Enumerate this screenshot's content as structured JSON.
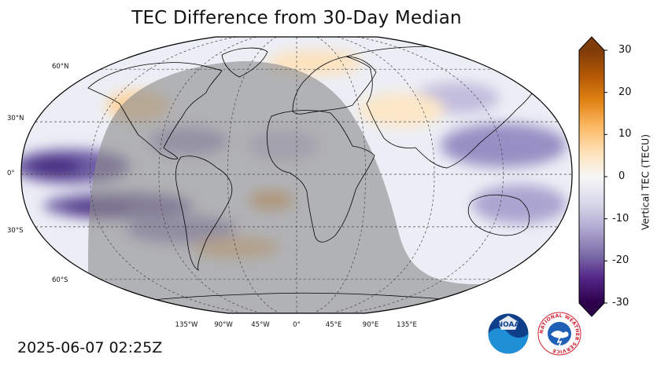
{
  "title": "TEC Difference from 30-Day Median",
  "timestamp": "2025-06-07 02:25Z",
  "map": {
    "projection": "Robinson",
    "lat_labels": [
      "60°N",
      "30°N",
      "0°",
      "30°S",
      "60°S"
    ],
    "lon_labels": [
      "135°W",
      "90°W",
      "45°W",
      "0°",
      "45°E",
      "90°E",
      "135°E"
    ],
    "night_shade_color": "#8c8c8c",
    "land_outline_color": "#000000",
    "gridline_style": "dashed"
  },
  "colorbar": {
    "label": "Vertical TEC (TECU)",
    "ticks": [
      "30",
      "20",
      "10",
      "0",
      "-10",
      "-20",
      "-30"
    ],
    "range": [
      -30,
      30
    ],
    "colors_top_to_bottom": [
      "#7f3b08",
      "#b35806",
      "#e08214",
      "#fdb863",
      "#fee0b6",
      "#f7f7f7",
      "#d8daeb",
      "#b2abd2",
      "#8073ac",
      "#542788",
      "#2d004b"
    ]
  },
  "logos": [
    {
      "name": "NOAA",
      "text": "NOAA"
    },
    {
      "name": "National Weather Service",
      "text": "NATIONAL WEATHER SERVICE"
    }
  ]
}
